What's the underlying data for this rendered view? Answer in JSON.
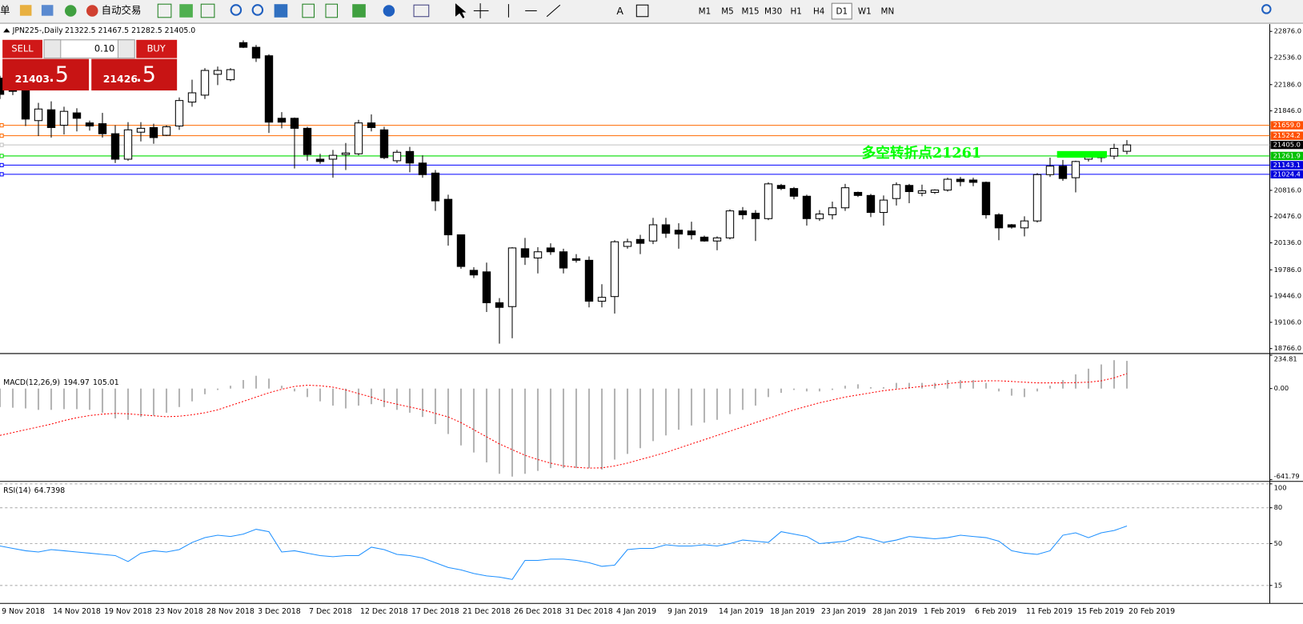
{
  "toolbar": {
    "items": [
      "单",
      "自动交易"
    ],
    "timeframes": [
      "M1",
      "M5",
      "M15",
      "M30",
      "H1",
      "H4",
      "D1",
      "W1",
      "MN"
    ],
    "active_timeframe": "D1"
  },
  "chart_header": {
    "symbol": "JPN225-,Daily",
    "ohlc": "21322.5 21467.5 21282.5 21405.0"
  },
  "trade_panel": {
    "sell": "SELL",
    "buy": "BUY",
    "lot": "0.10",
    "bid_main": "21403",
    "bid_frac": ".5",
    "ask_main": "21426",
    "ask_frac": ".5"
  },
  "chart_data": [
    {
      "type": "candlestick",
      "x": [
        "9 Nov 2018",
        null,
        null,
        null,
        "14 Nov 2018",
        null,
        null,
        null,
        "19 Nov 2018",
        null,
        null,
        null,
        "23 Nov 2018",
        null,
        null,
        null,
        "28 Nov 2018",
        null,
        null,
        null,
        "3 Dec 2018",
        null,
        null,
        null,
        "7 Dec 2018",
        null,
        null,
        null,
        "12 Dec 2018",
        null,
        null,
        null,
        "17 Dec 2018",
        null,
        null,
        null,
        "21 Dec 2018",
        null,
        null,
        null,
        "26 Dec 2018",
        null,
        null,
        null,
        "31 Dec 2018",
        null,
        null,
        null,
        "4 Jan 2019",
        null,
        null,
        null,
        "9 Jan 2019",
        null,
        null,
        null,
        "14 Jan 2019",
        null,
        null,
        null,
        "18 Jan 2019",
        null,
        null,
        null,
        "23 Jan 2019",
        null,
        null,
        null,
        "28 Jan 2019",
        null,
        null,
        null,
        "1 Feb 2019",
        null,
        null,
        null,
        "6 Feb 2019",
        null,
        null,
        null,
        "11 Feb 2019",
        null,
        null,
        null,
        "15 Feb 2019",
        null,
        null,
        null,
        "20 Feb 2019"
      ],
      "open": [
        22270,
        22100,
        22110,
        21720,
        21860,
        21660,
        21820,
        21690,
        21680,
        21550,
        21220,
        21570,
        21630,
        21530,
        21650,
        21960,
        22050,
        22320,
        22250,
        22730,
        22670,
        22560,
        21750,
        21750,
        21620,
        21220,
        21220,
        21280,
        21290,
        21690,
        21600,
        21200,
        21320,
        21170,
        21040,
        20700,
        20240,
        19780,
        19760,
        19360,
        19310,
        20060,
        19940,
        20070,
        20020,
        19930,
        19910,
        19380,
        19440,
        20090,
        20180,
        20160,
        20370,
        20300,
        20290,
        20210,
        20160,
        20200,
        20550,
        20520,
        20450,
        20880,
        20840,
        20740,
        20450,
        20500,
        20590,
        20790,
        20750,
        20530,
        20710,
        20880,
        20780,
        20790,
        20820,
        20960,
        20950,
        20920,
        20500,
        20370,
        20330,
        20420,
        21020,
        21130,
        20980,
        21220,
        21240,
        21260,
        21322.5
      ],
      "high": [
        22300,
        22200,
        22200,
        21950,
        21970,
        21900,
        21880,
        21720,
        21820,
        21660,
        21700,
        21700,
        21680,
        21660,
        22020,
        22250,
        22400,
        22420,
        22400,
        22760,
        22700,
        22580,
        21830,
        21760,
        21640,
        21290,
        21340,
        21430,
        21730,
        21800,
        21640,
        21340,
        21380,
        21270,
        21080,
        20760,
        20240,
        19820,
        19880,
        19420,
        20080,
        20200,
        20080,
        20130,
        20060,
        19990,
        19960,
        19600,
        20170,
        20190,
        20240,
        20460,
        20460,
        20390,
        20410,
        20230,
        20220,
        20570,
        20600,
        20560,
        20920,
        20900,
        20860,
        20760,
        20560,
        20670,
        20900,
        20800,
        20770,
        20750,
        20920,
        20900,
        20890,
        20830,
        20980,
        20990,
        20980,
        20930,
        20520,
        20380,
        20480,
        21040,
        21240,
        21210,
        21200,
        21280,
        21300,
        21420,
        21467.5
      ],
      "low": [
        22000,
        22050,
        21650,
        21520,
        21500,
        21540,
        21580,
        21590,
        21500,
        21170,
        21200,
        21450,
        21420,
        21520,
        21600,
        21900,
        22000,
        22180,
        22230,
        22660,
        22480,
        21560,
        21620,
        21100,
        21200,
        21160,
        20980,
        21080,
        21270,
        21580,
        21220,
        21170,
        21050,
        20980,
        20550,
        20100,
        19800,
        19680,
        19240,
        18830,
        18900,
        19850,
        19740,
        19980,
        19740,
        19880,
        19300,
        19300,
        19220,
        20060,
        19990,
        20120,
        20200,
        20060,
        20180,
        20150,
        20040,
        20180,
        20440,
        20160,
        20430,
        20820,
        20700,
        20360,
        20420,
        20440,
        20550,
        20730,
        20470,
        20360,
        20620,
        20650,
        20740,
        20770,
        20800,
        20870,
        20870,
        20450,
        20170,
        20320,
        20220,
        20400,
        20990,
        20940,
        20790,
        21190,
        21180,
        21220,
        21282.5
      ],
      "close": [
        22060,
        22110,
        21740,
        21870,
        21630,
        21840,
        21750,
        21650,
        21550,
        21220,
        21600,
        21620,
        21500,
        21640,
        21980,
        22080,
        22370,
        22370,
        22380,
        22670,
        22530,
        21700,
        21700,
        21620,
        21280,
        21190,
        21270,
        21300,
        21690,
        21630,
        21240,
        21310,
        21170,
        21020,
        20680,
        20240,
        19830,
        19720,
        19360,
        19300,
        20070,
        19950,
        20020,
        20020,
        19810,
        19910,
        19380,
        19430,
        20150,
        20150,
        20130,
        20370,
        20260,
        20250,
        20240,
        20160,
        20200,
        20550,
        20500,
        20450,
        20900,
        20840,
        20740,
        20450,
        20510,
        20590,
        20850,
        20750,
        20530,
        20690,
        20890,
        20800,
        20810,
        20820,
        20960,
        20930,
        20920,
        20500,
        20330,
        20340,
        20420,
        21020,
        21130,
        20970,
        21190,
        21250,
        21260,
        21360,
        21405
      ],
      "ylim": [
        18723,
        22960
      ],
      "yticks": [
        {
          "value": 22876,
          "label": "22876.0"
        },
        {
          "value": 22536,
          "label": "22536.0"
        },
        {
          "value": 22186,
          "label": "22186.0"
        },
        {
          "value": 21846,
          "label": "21846.0"
        },
        {
          "value": 20816,
          "label": "20816.0"
        },
        {
          "value": 20476,
          "label": "20476.0"
        },
        {
          "value": 20136,
          "label": "20136.0"
        },
        {
          "value": 19786,
          "label": "19786.0"
        },
        {
          "value": 19446,
          "label": "19446.0"
        },
        {
          "value": 19106,
          "label": "19106.0"
        },
        {
          "value": 18766,
          "label": "18766.0"
        }
      ],
      "levels": [
        {
          "value": 21659,
          "label": "21659.0",
          "color": "#ff6a00",
          "label_color": "#ff5000"
        },
        {
          "value": 21524.2,
          "label": "21524.2",
          "color": "#ff6a00",
          "label_color": "#ff5000"
        },
        {
          "value": 21405,
          "label": "21405.0",
          "color": "#c0c0c0",
          "label_color": "#000000"
        },
        {
          "value": 21261.9,
          "label": "21261.9",
          "color": "#00dd00",
          "label_color": "#00c000"
        },
        {
          "value": 21143.1,
          "label": "21143.1",
          "color": "#0000ff",
          "label_color": "#0000dd"
        },
        {
          "value": 21024.4,
          "label": "21024.4",
          "color": "#0000ff",
          "label_color": "#0000dd"
        }
      ],
      "annotation": "多空转折点21261",
      "up_color": "#ffffff",
      "down_color": "#000000"
    },
    {
      "type": "macd",
      "title": "MACD(12,26,9)",
      "series": [
        {
          "color": "#b4b4b4",
          "values": [
            -130,
            -135,
            -140,
            -150,
            -150,
            -145,
            -145,
            -150,
            -170,
            -210,
            -220,
            -200,
            -190,
            -170,
            -130,
            -90,
            -40,
            -10,
            20,
            60,
            90,
            70,
            20,
            -20,
            -60,
            -90,
            -120,
            -140,
            -120,
            -110,
            -130,
            -150,
            -170,
            -200,
            -250,
            -320,
            -400,
            -450,
            -520,
            -600,
            -620,
            -600,
            -580,
            -560,
            -560,
            -560,
            -560,
            -570,
            -500,
            -460,
            -420,
            -370,
            -330,
            -290,
            -260,
            -240,
            -220,
            -180,
            -150,
            -120,
            -60,
            -30,
            -10,
            -20,
            -20,
            -10,
            20,
            30,
            10,
            10,
            40,
            40,
            40,
            40,
            60,
            60,
            60,
            40,
            -20,
            -50,
            -60,
            -20,
            20,
            60,
            100,
            140,
            170,
            200,
            194.97
          ]
        },
        {
          "color": "#ff0000",
          "values": [
            -330,
            -310,
            -290,
            -270,
            -250,
            -225,
            -205,
            -190,
            -180,
            -175,
            -178,
            -185,
            -192,
            -198,
            -195,
            -185,
            -170,
            -150,
            -120,
            -90,
            -60,
            -30,
            -5,
            15,
            24,
            20,
            10,
            -10,
            -35,
            -60,
            -90,
            -110,
            -130,
            -150,
            -175,
            -200,
            -240,
            -290,
            -340,
            -390,
            -430,
            -470,
            -500,
            -525,
            -545,
            -555,
            -560,
            -558,
            -545,
            -525,
            -500,
            -475,
            -450,
            -420,
            -390,
            -360,
            -330,
            -300,
            -270,
            -240,
            -210,
            -180,
            -150,
            -125,
            -100,
            -80,
            -60,
            -45,
            -30,
            -15,
            -5,
            5,
            15,
            25,
            35,
            45,
            50,
            55,
            55,
            50,
            45,
            40,
            40,
            40,
            42,
            45,
            55,
            75,
            105.01
          ]
        }
      ],
      "ylim": [
        -641.79,
        234.81
      ],
      "yticks": [
        {
          "value": 234.81,
          "label": "234.81"
        },
        {
          "value": 0,
          "label": "0.00"
        },
        {
          "value": -641.79,
          "label": "-641.79"
        }
      ]
    },
    {
      "type": "line",
      "title": "RSI(14)",
      "series": [
        {
          "color": "#1e90ff",
          "values": [
            48,
            46,
            44,
            43,
            45,
            44,
            43,
            42,
            41,
            40,
            35,
            42,
            44,
            43,
            45,
            51,
            55,
            57,
            56,
            58,
            62,
            60,
            43,
            44,
            42,
            40,
            39,
            40,
            40,
            47,
            45,
            41,
            40,
            38,
            34,
            30,
            28,
            25,
            23,
            22,
            20,
            36,
            36,
            37,
            37,
            36,
            34,
            31,
            32,
            45,
            46,
            46,
            49,
            48,
            48,
            49,
            48,
            50,
            53,
            52,
            51,
            60,
            58,
            56,
            50,
            51,
            52,
            56,
            54,
            51,
            53,
            56,
            55,
            54,
            55,
            57,
            56,
            55,
            52,
            44,
            42,
            41,
            44,
            57,
            59,
            55,
            59,
            61,
            64.7398
          ]
        }
      ],
      "ylim": [
        0,
        100
      ],
      "yticks": [
        100,
        80,
        50,
        15
      ],
      "grid": true
    }
  ]
}
